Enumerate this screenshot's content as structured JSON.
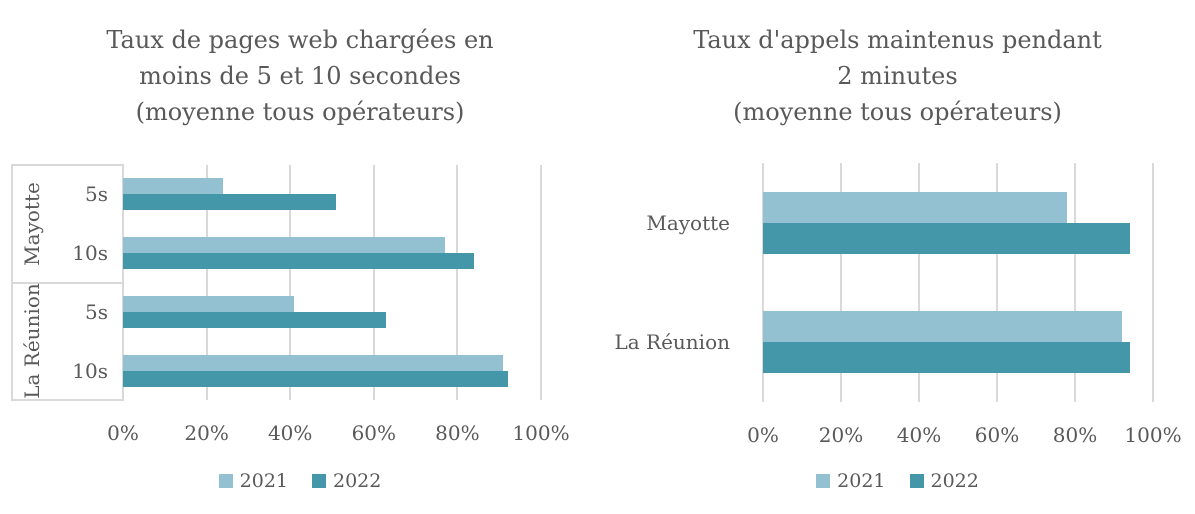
{
  "page": {
    "background": "#ffffff",
    "text_color": "#595959",
    "grid_color": "#d9d9d9"
  },
  "chart_data": [
    {
      "type": "bar",
      "orientation": "horizontal",
      "title": "Taux de pages web chargées en moins de 5 et 10 secondes (moyenne tous opérateurs)",
      "title_lines": [
        "Taux de pages web chargées en",
        "moins de 5 et 10 secondes",
        "(moyenne tous opérateurs)"
      ],
      "group_axis": [
        "Mayotte",
        "La Réunion"
      ],
      "categories": [
        "5s",
        "10s",
        "5s",
        "10s"
      ],
      "series": [
        {
          "name": "2021",
          "color": "#94C1D2",
          "values": [
            24,
            77,
            41,
            91
          ]
        },
        {
          "name": "2022",
          "color": "#4397A9",
          "values": [
            51,
            84,
            63,
            92
          ]
        }
      ],
      "xlim": [
        0,
        100
      ],
      "x_ticks": [
        0,
        20,
        40,
        60,
        80,
        100
      ],
      "x_tick_labels": [
        "0%",
        "20%",
        "40%",
        "60%",
        "80%",
        "100%"
      ],
      "grid": true,
      "legend_position": "bottom"
    },
    {
      "type": "bar",
      "orientation": "horizontal",
      "title": "Taux d'appels maintenus pendant 2 minutes (moyenne tous opérateurs)",
      "title_lines": [
        "Taux d'appels maintenus pendant",
        "2 minutes",
        "(moyenne tous opérateurs)"
      ],
      "categories": [
        "Mayotte",
        "La Réunion"
      ],
      "series": [
        {
          "name": "2021",
          "color": "#94C1D2",
          "values": [
            78,
            92
          ]
        },
        {
          "name": "2022",
          "color": "#4397A9",
          "values": [
            94,
            94
          ]
        }
      ],
      "xlim": [
        0,
        100
      ],
      "x_ticks": [
        0,
        20,
        40,
        60,
        80,
        100
      ],
      "x_tick_labels": [
        "0%",
        "20%",
        "40%",
        "60%",
        "80%",
        "100%"
      ],
      "grid": true,
      "legend_position": "bottom"
    }
  ]
}
